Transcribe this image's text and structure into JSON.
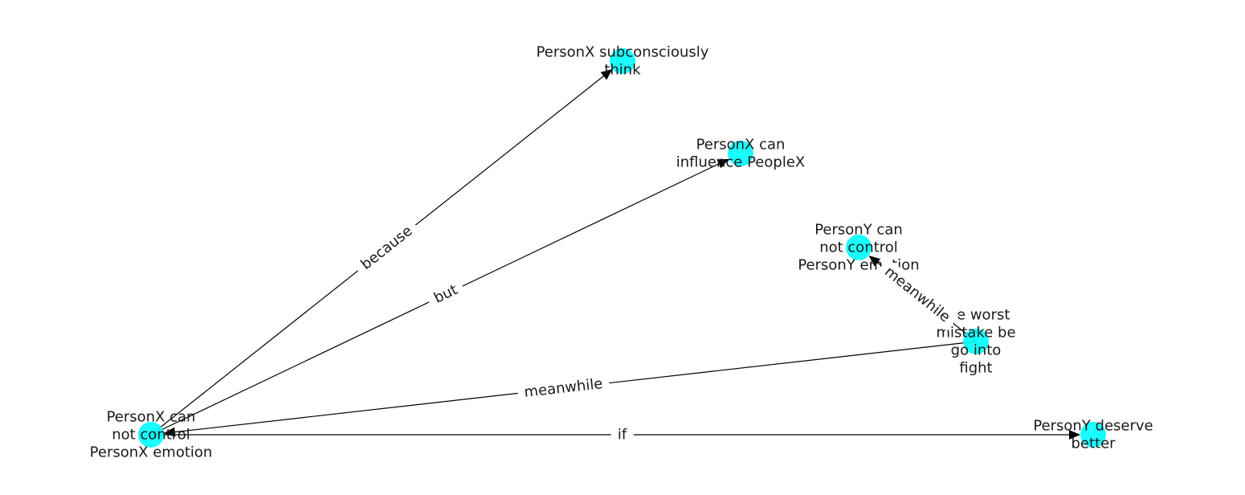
{
  "graph": {
    "node_color": "#00ffff",
    "edge_color": "#000000",
    "nodes": [
      {
        "id": "n1",
        "lines": [
          "PersonX can",
          "not control",
          "PersonX emotion"
        ]
      },
      {
        "id": "n2",
        "lines": [
          "PersonX subconsciously",
          "think"
        ]
      },
      {
        "id": "n3",
        "lines": [
          "PersonX can",
          "influence PeopleX"
        ]
      },
      {
        "id": "n4",
        "lines": [
          "PersonY can",
          "not control",
          "PersonY emotion"
        ]
      },
      {
        "id": "n5",
        "lines": [
          "the worst",
          "mistake be",
          "go into",
          "fight"
        ]
      },
      {
        "id": "n6",
        "lines": [
          "PersonY deserve",
          "better"
        ]
      }
    ],
    "edges": [
      {
        "from": "n1",
        "to": "n2",
        "label": "because"
      },
      {
        "from": "n1",
        "to": "n3",
        "label": "but"
      },
      {
        "from": "n5",
        "to": "n1",
        "label": "meanwhile"
      },
      {
        "from": "n5",
        "to": "n4",
        "label": "meanwhile"
      },
      {
        "from": "n1",
        "to": "n6",
        "label": "if"
      }
    ]
  }
}
